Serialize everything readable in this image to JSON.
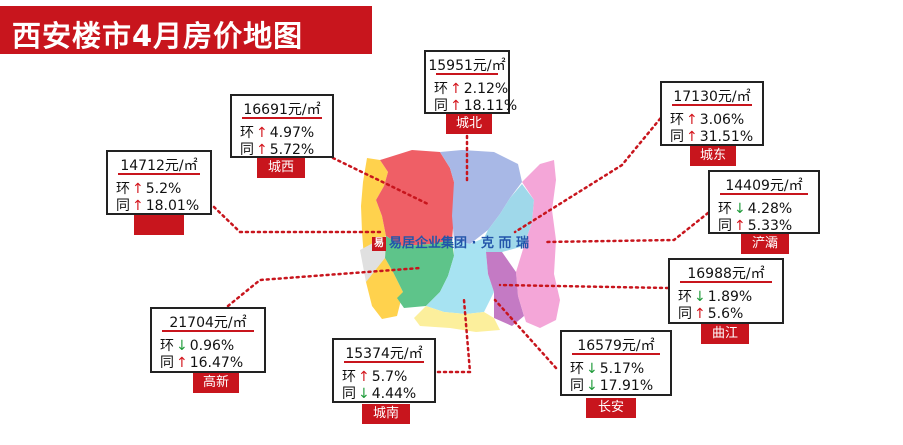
{
  "title": "西安楼市4月房价地图",
  "watermark": {
    "logo": "易",
    "text": "易居企业集团 · 克 而 瑞"
  },
  "labels": {
    "mom": "环",
    "yoy": "同"
  },
  "colors": {
    "brand_red": "#c8151d",
    "up": "#d4141c",
    "down": "#1f9b3a"
  },
  "districts": {
    "chengbei": {
      "name": "城北",
      "price": "15951元/㎡",
      "mom_dir": "up",
      "mom": "2.12%",
      "yoy_dir": "up",
      "yoy": "18.11%"
    },
    "chengxi": {
      "name": "城西",
      "price": "16691元/㎡",
      "mom_dir": "up",
      "mom": "4.97%",
      "yoy_dir": "up",
      "yoy": "5.72%"
    },
    "chengdong": {
      "name": "城东",
      "price": "17130元/㎡",
      "mom_dir": "up",
      "mom": "3.06%",
      "yoy_dir": "up",
      "yoy": "31.51%"
    },
    "west": {
      "name": "",
      "price": "14712元/㎡",
      "mom_dir": "up",
      "mom": "5.2%",
      "yoy_dir": "up",
      "yoy": "18.01%"
    },
    "chanba": {
      "name": "浐灞",
      "price": "14409元/㎡",
      "mom_dir": "down",
      "mom": "4.28%",
      "yoy_dir": "up",
      "yoy": "5.33%"
    },
    "qujiang": {
      "name": "曲江",
      "price": "16988元/㎡",
      "mom_dir": "down",
      "mom": "1.89%",
      "yoy_dir": "up",
      "yoy": "5.6%"
    },
    "gaoxin": {
      "name": "高新",
      "price": "21704元/㎡",
      "mom_dir": "down",
      "mom": "0.96%",
      "yoy_dir": "up",
      "yoy": "16.47%"
    },
    "chengnan": {
      "name": "城南",
      "price": "15374元/㎡",
      "mom_dir": "up",
      "mom": "5.7%",
      "yoy_dir": "down",
      "yoy": "4.44%"
    },
    "changan": {
      "name": "长安",
      "price": "16579元/㎡",
      "mom_dir": "down",
      "mom": "5.17%",
      "yoy_dir": "down",
      "yoy": "17.91%"
    }
  }
}
